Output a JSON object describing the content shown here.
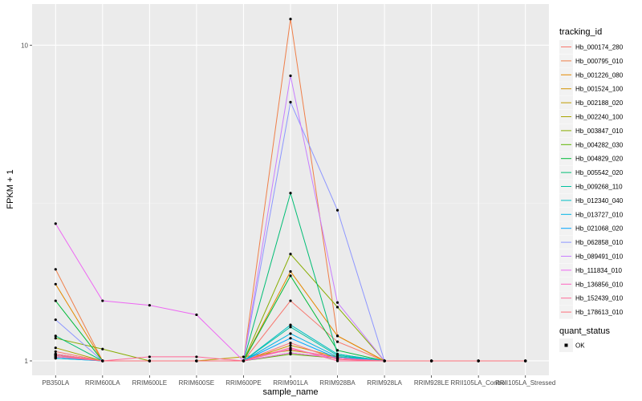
{
  "chart_data": {
    "type": "line",
    "xlabel": "sample_name",
    "ylabel": "FPKM + 1",
    "y_scale": "log10",
    "ylim": [
      0.9,
      13.5
    ],
    "y_ticks": [
      1,
      10
    ],
    "y_tick_labels": [
      "1",
      "10"
    ],
    "grid": true,
    "legend_position": "right",
    "categories": [
      "PB350LA",
      "RRIM600LA",
      "RRIM600LE",
      "RRIM600SE",
      "RRIM600PE",
      "RRIM901LA",
      "RRIM928BA",
      "RRIM928LA",
      "RRIM928LE",
      "RRII105LA_Control",
      "RRII105LA_Stressed"
    ],
    "legend": {
      "color_title": "tracking_id",
      "shape_title": "quant_status",
      "shape_entries": [
        "OK"
      ]
    },
    "series": [
      {
        "name": "Hb_000174_280",
        "color": "#F8766D",
        "values": [
          1.07,
          1.0,
          1.0,
          1.0,
          1.0,
          1.55,
          1.15,
          1.0,
          1.0,
          1.0,
          1.0
        ]
      },
      {
        "name": "Hb_000795_010",
        "color": "#EF7F49",
        "values": [
          1.95,
          1.0,
          1.0,
          1.0,
          1.0,
          12.1,
          1.2,
          1.0,
          1.0,
          1.0,
          1.0
        ]
      },
      {
        "name": "Hb_001226_080",
        "color": "#E38900",
        "values": [
          1.75,
          1.0,
          1.0,
          1.0,
          1.0,
          1.92,
          1.2,
          1.0,
          1.0,
          1.0,
          1.0
        ]
      },
      {
        "name": "Hb_001524_100",
        "color": "#D39200",
        "values": [
          1.05,
          1.0,
          1.0,
          1.0,
          1.0,
          1.12,
          1.03,
          1.0,
          1.0,
          1.0,
          1.0
        ]
      },
      {
        "name": "Hb_002188_020",
        "color": "#BF9C00",
        "values": [
          1.05,
          1.0,
          1.0,
          1.0,
          1.03,
          1.08,
          1.03,
          1.0,
          1.0,
          1.0,
          1.0
        ]
      },
      {
        "name": "Hb_002240_100",
        "color": "#A7A300",
        "values": [
          1.1,
          1.0,
          1.0,
          1.0,
          1.0,
          1.06,
          1.02,
          1.0,
          1.0,
          1.0,
          1.0
        ]
      },
      {
        "name": "Hb_003847_010",
        "color": "#87AC00",
        "values": [
          1.18,
          1.09,
          1.0,
          1.0,
          1.0,
          2.18,
          1.48,
          1.0,
          1.0,
          1.0,
          1.0
        ]
      },
      {
        "name": "Hb_004282_030",
        "color": "#5CB300",
        "values": [
          1.05,
          1.0,
          1.0,
          1.0,
          1.0,
          1.05,
          1.02,
          1.0,
          1.0,
          1.0,
          1.0
        ]
      },
      {
        "name": "Hb_004829_020",
        "color": "#00BA38",
        "values": [
          1.55,
          1.0,
          1.0,
          1.0,
          1.0,
          1.86,
          1.08,
          1.0,
          1.0,
          1.0,
          1.0
        ]
      },
      {
        "name": "Hb_005542_020",
        "color": "#00BD74",
        "values": [
          1.2,
          1.0,
          1.0,
          1.0,
          1.0,
          3.4,
          1.05,
          1.0,
          1.0,
          1.0,
          1.0
        ]
      },
      {
        "name": "Hb_009268_110",
        "color": "#00C09F",
        "values": [
          1.03,
          1.0,
          1.0,
          1.0,
          1.0,
          1.28,
          1.04,
          1.0,
          1.0,
          1.0,
          1.0
        ]
      },
      {
        "name": "Hb_012340_040",
        "color": "#00BEC4",
        "values": [
          1.02,
          1.0,
          1.0,
          1.0,
          1.0,
          1.3,
          1.05,
          1.0,
          1.0,
          1.0,
          1.0
        ]
      },
      {
        "name": "Hb_013727_010",
        "color": "#00B4E4",
        "values": [
          1.02,
          1.0,
          1.0,
          1.0,
          1.0,
          1.22,
          1.03,
          1.0,
          1.0,
          1.0,
          1.0
        ]
      },
      {
        "name": "Hb_021068_020",
        "color": "#00A5FF",
        "values": [
          1.04,
          1.0,
          1.0,
          1.0,
          1.0,
          1.18,
          1.02,
          1.0,
          1.0,
          1.0,
          1.0
        ]
      },
      {
        "name": "Hb_062858_010",
        "color": "#8D96FF",
        "values": [
          1.35,
          1.0,
          1.0,
          1.0,
          1.0,
          6.6,
          3.0,
          1.0,
          1.0,
          1.0,
          1.0
        ]
      },
      {
        "name": "Hb_089491_010",
        "color": "#C87EFF",
        "values": [
          1.05,
          1.0,
          1.0,
          1.0,
          1.0,
          8.0,
          1.53,
          1.0,
          1.0,
          1.0,
          1.0
        ]
      },
      {
        "name": "Hb_111834_010",
        "color": "#ED67F3",
        "values": [
          2.72,
          1.55,
          1.5,
          1.4,
          1.0,
          1.06,
          1.02,
          1.0,
          1.0,
          1.0,
          1.0
        ]
      },
      {
        "name": "Hb_136856_010",
        "color": "#FF62C0",
        "values": [
          1.03,
          1.0,
          1.0,
          1.0,
          1.0,
          1.09,
          1.02,
          1.0,
          1.0,
          1.0,
          1.0
        ]
      },
      {
        "name": "Hb_152439_010",
        "color": "#FF6A98",
        "values": [
          1.05,
          1.0,
          1.03,
          1.03,
          1.0,
          1.1,
          1.0,
          1.0,
          1.0,
          1.0,
          1.0
        ]
      },
      {
        "name": "Hb_178613_010",
        "color": "#FD6F7A",
        "values": [
          1.04,
          1.0,
          1.0,
          1.0,
          1.0,
          1.14,
          1.01,
          1.0,
          1.0,
          1.0,
          1.0
        ]
      }
    ]
  }
}
